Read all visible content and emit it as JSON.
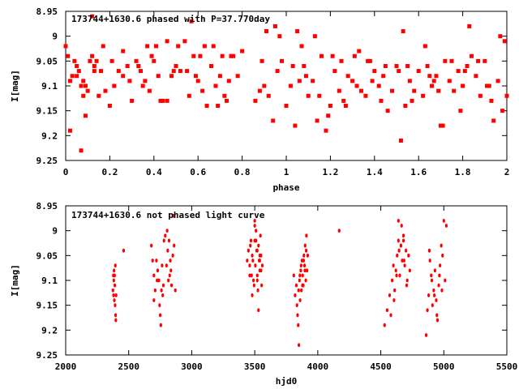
{
  "chart_data": [
    {
      "type": "scatter",
      "title": "173744+1630.6 phased with P=37.770day",
      "xlabel": "phase",
      "ylabel": "I[mag]",
      "xlim": [
        0,
        2
      ],
      "ylim": [
        9.25,
        8.95
      ],
      "y_inverted": true,
      "x_ticks": [
        "0",
        "0.2",
        "0.4",
        "0.6",
        "0.8",
        "1",
        "1.2",
        "1.4",
        "1.6",
        "1.8",
        "2"
      ],
      "y_ticks": [
        "8.95",
        "9",
        "9.05",
        "9.1",
        "9.15",
        "9.2",
        "9.25"
      ],
      "grid": false,
      "marker_color": "#ff0000",
      "x": [
        0.0,
        0.01,
        0.02,
        0.03,
        0.04,
        0.05,
        0.06,
        0.07,
        0.08,
        0.09,
        0.1,
        0.11,
        0.12,
        0.13,
        0.14,
        0.15,
        0.16,
        0.18,
        0.2,
        0.22,
        0.24,
        0.26,
        0.28,
        0.3,
        0.32,
        0.34,
        0.36,
        0.38,
        0.4,
        0.42,
        0.44,
        0.46,
        0.48,
        0.5,
        0.52,
        0.54,
        0.56,
        0.58,
        0.6,
        0.62,
        0.64,
        0.66,
        0.68,
        0.7,
        0.72,
        0.74,
        0.76,
        0.78,
        0.8,
        0.02,
        0.07,
        0.12,
        0.17,
        0.26,
        0.35,
        0.41,
        0.46,
        0.51,
        0.57,
        0.63,
        0.69,
        0.75,
        0.05,
        0.09,
        0.13,
        0.21,
        0.29,
        0.37,
        0.43,
        0.49,
        0.55,
        0.61,
        0.67,
        0.73,
        0.08,
        0.33,
        0.39,
        0.59,
        0.71,
        0.86,
        0.88,
        0.9,
        0.92,
        0.94,
        0.96,
        0.98,
        1.0,
        1.02,
        1.04,
        1.06,
        1.08,
        1.1,
        1.12,
        1.14,
        1.16,
        1.18,
        1.2,
        1.22,
        1.24,
        1.26,
        1.28,
        1.3,
        1.32,
        1.34,
        1.36,
        1.38,
        1.4,
        1.42,
        1.44,
        1.46,
        1.48,
        1.5,
        1.52,
        1.54,
        1.56,
        1.58,
        1.6,
        1.62,
        1.64,
        1.66,
        1.68,
        1.7,
        1.72,
        1.74,
        1.76,
        1.78,
        1.8,
        1.82,
        1.84,
        1.86,
        1.88,
        1.9,
        1.92,
        1.94,
        1.96,
        1.98,
        2.0,
        0.91,
        0.97,
        1.03,
        1.09,
        1.15,
        1.21,
        1.27,
        1.33,
        1.39,
        1.45,
        1.51,
        1.57,
        1.63,
        1.69,
        1.75,
        1.81,
        1.87,
        1.93,
        1.99,
        0.95,
        1.05,
        1.13,
        1.25,
        1.37,
        1.53,
        1.65,
        1.71,
        1.83,
        1.97,
        0.89,
        1.07,
        1.19,
        1.31,
        1.43,
        1.55,
        1.67,
        1.79,
        1.91
      ],
      "y": [
        9.02,
        9.04,
        9.09,
        9.08,
        9.05,
        9.06,
        9.07,
        9.1,
        9.12,
        9.16,
        9.11,
        9.05,
        9.04,
        9.06,
        9.05,
        9.12,
        9.07,
        9.11,
        9.14,
        9.1,
        9.07,
        9.08,
        9.06,
        9.13,
        9.05,
        9.07,
        9.09,
        9.11,
        9.05,
        9.08,
        9.13,
        9.01,
        9.08,
        9.06,
        9.07,
        9.01,
        9.12,
        9.04,
        9.09,
        9.11,
        9.14,
        9.06,
        9.1,
        9.08,
        9.12,
        9.09,
        9.04,
        9.08,
        9.03,
        9.19,
        9.23,
        8.96,
        9.02,
        9.03,
        9.1,
        9.02,
        9.13,
        9.02,
        8.97,
        9.02,
        9.14,
        9.04,
        9.08,
        9.1,
        9.07,
        9.05,
        9.09,
        9.02,
        9.13,
        9.07,
        9.07,
        9.04,
        9.02,
        9.13,
        9.09,
        9.06,
        9.04,
        9.08,
        9.04,
        9.13,
        9.11,
        9.1,
        9.12,
        9.17,
        9.07,
        9.05,
        9.14,
        9.1,
        9.18,
        9.09,
        9.06,
        9.12,
        9.09,
        9.17,
        9.04,
        9.19,
        9.14,
        9.07,
        9.11,
        9.13,
        9.08,
        9.09,
        9.1,
        9.11,
        9.12,
        9.05,
        9.07,
        9.1,
        9.08,
        9.15,
        9.11,
        9.06,
        9.21,
        9.14,
        9.09,
        9.11,
        9.07,
        9.12,
        9.06,
        9.1,
        9.08,
        9.18,
        9.05,
        9.09,
        9.11,
        9.07,
        9.1,
        9.06,
        9.04,
        9.08,
        9.12,
        9.05,
        9.1,
        9.17,
        9.09,
        9.15,
        9.12,
        8.99,
        9.0,
        9.06,
        9.08,
        9.12,
        9.04,
        9.14,
        9.03,
        9.09,
        9.06,
        9.07,
        9.13,
        9.02,
        9.11,
        9.05,
        9.07,
        9.05,
        9.13,
        9.01,
        8.98,
        8.99,
        9.0,
        9.05,
        9.05,
        8.99,
        9.08,
        9.18,
        8.98,
        9.0,
        9.05,
        9.02,
        9.16,
        9.04,
        9.13,
        9.06,
        9.09,
        9.15,
        9.1
      ]
    },
    {
      "type": "scatter",
      "title": "173744+1630.6 not phased light curve",
      "xlabel": "hjd0",
      "ylabel": "I[mag]",
      "xlim": [
        2000,
        5500
      ],
      "ylim": [
        9.25,
        8.95
      ],
      "y_inverted": true,
      "x_ticks": [
        "2000",
        "2500",
        "3000",
        "3500",
        "4000",
        "4500",
        "5000",
        "5500"
      ],
      "y_ticks": [
        "8.95",
        "9",
        "9.05",
        "9.1",
        "9.15",
        "9.2",
        "9.25"
      ],
      "grid": false,
      "marker_color": "#ff0000",
      "x": [
        2375,
        2378,
        2380,
        2382,
        2384,
        2386,
        2388,
        2390,
        2392,
        2394,
        2396,
        2398,
        2400,
        2460,
        2680,
        2690,
        2700,
        2710,
        2720,
        2730,
        2740,
        2745,
        2750,
        2755,
        2760,
        2765,
        2770,
        2780,
        2790,
        2800,
        2810,
        2815,
        2820,
        2825,
        2830,
        2840,
        2850,
        2860,
        2870,
        2700,
        2725,
        2775,
        2805,
        2835,
        2855,
        3440,
        3450,
        3460,
        3470,
        3480,
        3490,
        3500,
        3505,
        3510,
        3515,
        3520,
        3525,
        3530,
        3535,
        3540,
        3545,
        3550,
        3555,
        3560,
        3465,
        3475,
        3485,
        3495,
        3500,
        3510,
        3520,
        3530,
        3540,
        3550,
        3460,
        3480,
        3500,
        3520,
        3540,
        3810,
        3820,
        3830,
        3840,
        3845,
        3850,
        3855,
        3860,
        3865,
        3870,
        3875,
        3880,
        3885,
        3890,
        3895,
        3900,
        3905,
        3910,
        3915,
        3920,
        3835,
        3848,
        3858,
        3868,
        3878,
        3888,
        3898,
        3908,
        4170,
        4530,
        4550,
        4570,
        4590,
        4600,
        4610,
        4620,
        4630,
        4640,
        4650,
        4660,
        4670,
        4680,
        4690,
        4700,
        4710,
        4720,
        4730,
        4580,
        4605,
        4625,
        4645,
        4665,
        4685,
        4705,
        4640,
        4660,
        4680,
        4860,
        4870,
        4880,
        4890,
        4900,
        4910,
        4920,
        4930,
        4940,
        4950,
        4960,
        4970,
        4980,
        4990,
        5000,
        5010,
        5020,
        4885,
        4905,
        4925,
        4945,
        4965,
        4985
      ],
      "y": [
        9.12,
        9.09,
        9.13,
        9.1,
        9.08,
        9.14,
        9.09,
        9.11,
        9.15,
        9.07,
        9.17,
        9.18,
        9.13,
        9.04,
        9.03,
        9.06,
        9.09,
        9.12,
        9.06,
        9.08,
        9.1,
        9.15,
        9.17,
        9.19,
        9.12,
        9.07,
        9.13,
        9.02,
        9.01,
        9.07,
        9.04,
        9.1,
        9.02,
        9.09,
        9.06,
        9.11,
        9.05,
        9.03,
        9.12,
        9.14,
        9.1,
        9.11,
        9.0,
        9.08,
        8.97,
        9.06,
        9.04,
        9.09,
        9.02,
        9.05,
        9.1,
        8.98,
        9.07,
        9.0,
        9.04,
        9.09,
        9.12,
        9.03,
        9.06,
        9.08,
        9.01,
        9.05,
        9.11,
        9.07,
        9.03,
        9.09,
        9.06,
        9.11,
        8.99,
        9.02,
        9.1,
        9.16,
        9.05,
        9.08,
        9.07,
        9.13,
        9.02,
        9.04,
        9.06,
        9.09,
        9.13,
        9.11,
        9.17,
        9.19,
        9.23,
        9.1,
        9.14,
        9.08,
        9.12,
        9.06,
        9.09,
        9.11,
        9.05,
        9.07,
        9.03,
        9.1,
        9.01,
        9.08,
        9.05,
        9.15,
        9.12,
        9.09,
        9.07,
        9.11,
        9.06,
        9.08,
        9.04,
        9.0,
        9.19,
        9.16,
        9.13,
        9.1,
        9.07,
        9.12,
        9.08,
        9.05,
        9.02,
        9.09,
        9.03,
        9.06,
        9.01,
        9.07,
        9.04,
        9.1,
        9.05,
        9.08,
        9.17,
        9.14,
        9.09,
        9.04,
        8.99,
        9.06,
        9.11,
        8.98,
        9.03,
        9.02,
        9.21,
        9.16,
        9.13,
        9.06,
        9.09,
        9.15,
        9.12,
        9.08,
        9.14,
        9.18,
        9.11,
        9.07,
        9.03,
        9.05,
        8.98,
        9.1,
        8.99,
        9.04,
        9.1,
        9.13,
        9.17,
        9.09,
        9.12
      ]
    }
  ]
}
